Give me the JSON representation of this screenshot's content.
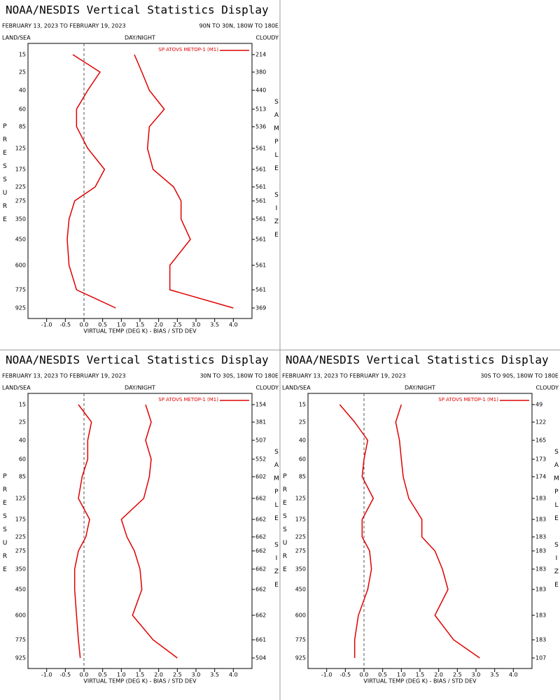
{
  "chart_data": [
    {
      "type": "line",
      "title": "NOAA/NESDIS Vertical Statistics Display",
      "subtitle": "FEBRUARY 13, 2023 TO FEBRUARY 19, 2023",
      "region": "90N TO 30N, 180W TO 180E",
      "land_sea": "LAND/SEA",
      "day_night": "DAY/NIGHT",
      "cloudy": "CLOUDY",
      "y_label": "PRESSURE",
      "y2_label": "SAMPLE SIZE",
      "x_label": "VIRTUAL TEMP (DEG K) - BIAS / STD DEV",
      "categories": [
        15,
        25,
        40,
        60,
        85,
        125,
        175,
        225,
        275,
        350,
        450,
        600,
        775,
        925
      ],
      "sample_size": [
        214,
        380,
        440,
        513,
        536,
        561,
        561,
        561,
        561,
        561,
        561,
        561,
        561,
        369
      ],
      "series": [
        {
          "name": "SP ATOVS METOP-1 (M1)",
          "color": "#e00000",
          "bias": [
            -0.3,
            0.43,
            0.1,
            -0.2,
            -0.2,
            0.1,
            0.55,
            0.3,
            -0.25,
            -0.4,
            -0.45,
            -0.4,
            -0.2,
            0.85
          ],
          "std_dev": [
            1.35,
            1.55,
            1.75,
            2.15,
            1.75,
            1.7,
            1.85,
            2.4,
            2.6,
            2.6,
            2.85,
            2.3,
            2.3,
            4.0
          ]
        }
      ],
      "xlim": [
        -1.5,
        4.5
      ],
      "xticks": [
        {
          "value": -1,
          "label": "-1.0"
        },
        -0.5,
        {
          "value": 0,
          "label": "0.0"
        },
        0.5,
        {
          "value": 1,
          "label": "1.0"
        },
        1.5,
        {
          "value": 2,
          "label": "2.0"
        },
        2.5,
        {
          "value": 3,
          "label": "3.0"
        },
        3.5,
        {
          "value": 4,
          "label": "4.0"
        }
      ],
      "legend": "upper right"
    },
    {
      "type": "line",
      "title": "NOAA/NESDIS Vertical Statistics Display",
      "subtitle": "FEBRUARY 13, 2023 TO FEBRUARY 19, 2023",
      "region": "30N TO 30S, 180W TO 180E",
      "land_sea": "LAND/SEA",
      "day_night": "DAY/NIGHT",
      "cloudy": "CLOUDY",
      "y_label": "PRESSURE",
      "y2_label": "SAMPLE SIZE",
      "x_label": "VIRTUAL TEMP (DEG K) - BIAS / STD DEV",
      "categories": [
        15,
        25,
        40,
        60,
        85,
        125,
        175,
        225,
        275,
        350,
        450,
        600,
        775,
        925
      ],
      "sample_size": [
        154,
        381,
        507,
        552,
        602,
        662,
        662,
        662,
        662,
        662,
        662,
        662,
        661,
        504
      ],
      "series": [
        {
          "name": "SP ATOVS METOP-1 (M1)",
          "color": "#e00000",
          "bias": [
            -0.15,
            0.2,
            0.1,
            0.1,
            -0.05,
            -0.15,
            0.15,
            0.05,
            -0.15,
            -0.25,
            -0.25,
            -0.2,
            -0.15,
            -0.1
          ],
          "std_dev": [
            1.65,
            1.8,
            1.65,
            1.8,
            1.75,
            1.6,
            1.0,
            1.15,
            1.35,
            1.5,
            1.55,
            1.3,
            1.85,
            2.5
          ]
        }
      ],
      "xlim": [
        -1.5,
        4.5
      ],
      "xticks": [
        {
          "value": -1,
          "label": "-1.0"
        },
        -0.5,
        {
          "value": 0,
          "label": "0.0"
        },
        0.5,
        {
          "value": 1,
          "label": "1.0"
        },
        1.5,
        {
          "value": 2,
          "label": "2.0"
        },
        2.5,
        {
          "value": 3,
          "label": "3.0"
        },
        3.5,
        {
          "value": 4,
          "label": "4.0"
        }
      ],
      "legend": "upper right"
    },
    {
      "type": "line",
      "title": "NOAA/NESDIS Vertical Statistics Display",
      "subtitle": "FEBRUARY 13, 2023 TO FEBRUARY 19, 2023",
      "region": "30S TO 90S, 180W TO 180E",
      "land_sea": "LAND/SEA",
      "day_night": "DAY/NIGHT",
      "cloudy": "CLOUDY",
      "y_label": "PRESSURE",
      "y2_label": "SAMPLE SIZE",
      "x_label": "VIRTUAL TEMP (DEG K) - BIAS / STD DEV",
      "categories": [
        15,
        25,
        40,
        60,
        85,
        125,
        175,
        225,
        275,
        350,
        450,
        600,
        775,
        925
      ],
      "sample_size": [
        49,
        122,
        165,
        173,
        174,
        183,
        183,
        183,
        183,
        183,
        183,
        183,
        183,
        107
      ],
      "series": [
        {
          "name": "SP ATOVS METOP-1 (M1)",
          "color": "#e00000",
          "bias": [
            -0.65,
            -0.25,
            0.1,
            0.0,
            -0.05,
            0.25,
            -0.05,
            -0.05,
            0.15,
            0.2,
            0.1,
            -0.15,
            -0.25,
            -0.25
          ],
          "std_dev": [
            1.0,
            0.85,
            0.95,
            1.0,
            1.05,
            1.2,
            1.55,
            1.55,
            1.9,
            2.1,
            2.25,
            1.9,
            2.4,
            3.1
          ]
        }
      ],
      "xlim": [
        -1.5,
        4.5
      ],
      "xticks": [
        {
          "value": -1,
          "label": "-1.0"
        },
        -0.5,
        {
          "value": 0,
          "label": "0.0"
        },
        0.5,
        {
          "value": 1,
          "label": "1.0"
        },
        1.5,
        {
          "value": 2,
          "label": "2.0"
        },
        2.5,
        {
          "value": 3,
          "label": "3.0"
        },
        3.5,
        {
          "value": 4,
          "label": "4.0"
        }
      ],
      "legend": "upper right"
    }
  ]
}
